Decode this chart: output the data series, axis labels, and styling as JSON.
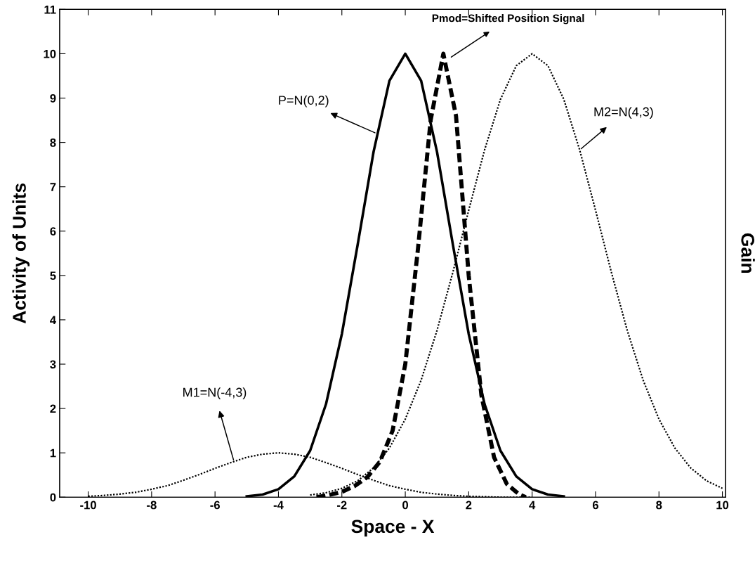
{
  "chart_data": {
    "type": "line",
    "xlabel": "Space - X",
    "ylabel": "Activity of Units",
    "y2label": "Gain",
    "xlim": [
      -10.9,
      10.1
    ],
    "xticks": [
      -10,
      -8,
      -6,
      -4,
      -2,
      0,
      2,
      4,
      6,
      8,
      10
    ],
    "ylim": [
      0,
      11
    ],
    "yticks": [
      0,
      1,
      2,
      3,
      4,
      5,
      6,
      7,
      8,
      9,
      10,
      11
    ],
    "grid": false,
    "marker": "none",
    "series": [
      {
        "color": "#000000",
        "line_style": "solid",
        "x": [
          -5,
          -4.5,
          -4,
          -3.5,
          -3,
          -2.5,
          -2,
          -1.5,
          -1,
          -0.5,
          0,
          0.5,
          1,
          1.5,
          2,
          2.5,
          3,
          3.5,
          4,
          4.5,
          5
        ],
        "values": [
          0.02,
          0.06,
          0.18,
          0.47,
          1.05,
          2.1,
          3.68,
          5.7,
          7.79,
          9.39,
          10,
          9.39,
          7.79,
          5.7,
          3.68,
          2.1,
          1.05,
          0.47,
          0.18,
          0.06,
          0.02
        ]
      },
      {
        "color": "#000000",
        "line_style": "dashed",
        "x": [
          -2.8,
          -2.4,
          -2.0,
          -1.6,
          -1.2,
          -0.8,
          -0.4,
          0,
          0.4,
          0.8,
          1.2,
          1.6,
          2.0,
          2.4,
          2.8,
          3.2,
          3.6,
          3.8
        ],
        "values": [
          0.0,
          0.05,
          0.12,
          0.25,
          0.45,
          0.8,
          1.5,
          3.0,
          5.6,
          8.5,
          10.0,
          8.6,
          5.0,
          2.3,
          0.9,
          0.3,
          0.06,
          0.0
        ]
      },
      {
        "color": "#000000",
        "line_style": "dotted",
        "x": [
          -10,
          -9.5,
          -9,
          -8.5,
          -8,
          -7.5,
          -7,
          -6.5,
          -6,
          -5.5,
          -5,
          -4.5,
          -4,
          -3.5,
          -3,
          -2.5,
          -2,
          -1.5,
          -1,
          -0.5,
          0,
          0.5,
          1,
          1.5,
          2,
          2.5,
          3,
          3.5,
          4
        ],
        "values": [
          0.02,
          0.04,
          0.07,
          0.11,
          0.18,
          0.26,
          0.38,
          0.51,
          0.65,
          0.78,
          0.9,
          0.97,
          1.0,
          0.97,
          0.9,
          0.78,
          0.65,
          0.51,
          0.38,
          0.26,
          0.18,
          0.11,
          0.07,
          0.04,
          0.02,
          0.01,
          0.0,
          0.0,
          0.0
        ]
      },
      {
        "color": "#000000",
        "line_style": "dotted",
        "x": [
          -3,
          -2.5,
          -2,
          -1.5,
          -1,
          -0.5,
          0,
          0.5,
          1,
          1.5,
          2,
          2.5,
          3,
          3.5,
          4,
          4.5,
          5,
          5.5,
          6,
          6.5,
          7,
          7.5,
          8,
          8.5,
          9,
          9.5,
          10
        ],
        "values": [
          0.05,
          0.1,
          0.2,
          0.37,
          0.66,
          1.11,
          1.76,
          2.64,
          3.76,
          5.07,
          6.47,
          7.83,
          8.97,
          9.73,
          10,
          9.73,
          8.97,
          7.83,
          6.47,
          5.07,
          3.76,
          2.64,
          1.76,
          1.11,
          0.66,
          0.37,
          0.2
        ]
      }
    ],
    "annotations": [
      {
        "text": "Pmod=Shifted Position Signal",
        "x": 1.4,
        "y": 9.9
      },
      {
        "text": "M2=N(4,3)",
        "x": 5.5,
        "y": 7.83
      },
      {
        "text": "P=N(0,2)",
        "x": -0.9,
        "y": 8.2
      },
      {
        "text": "M1=N(-4,3)",
        "x": -5.4,
        "y": 0.8
      }
    ]
  }
}
